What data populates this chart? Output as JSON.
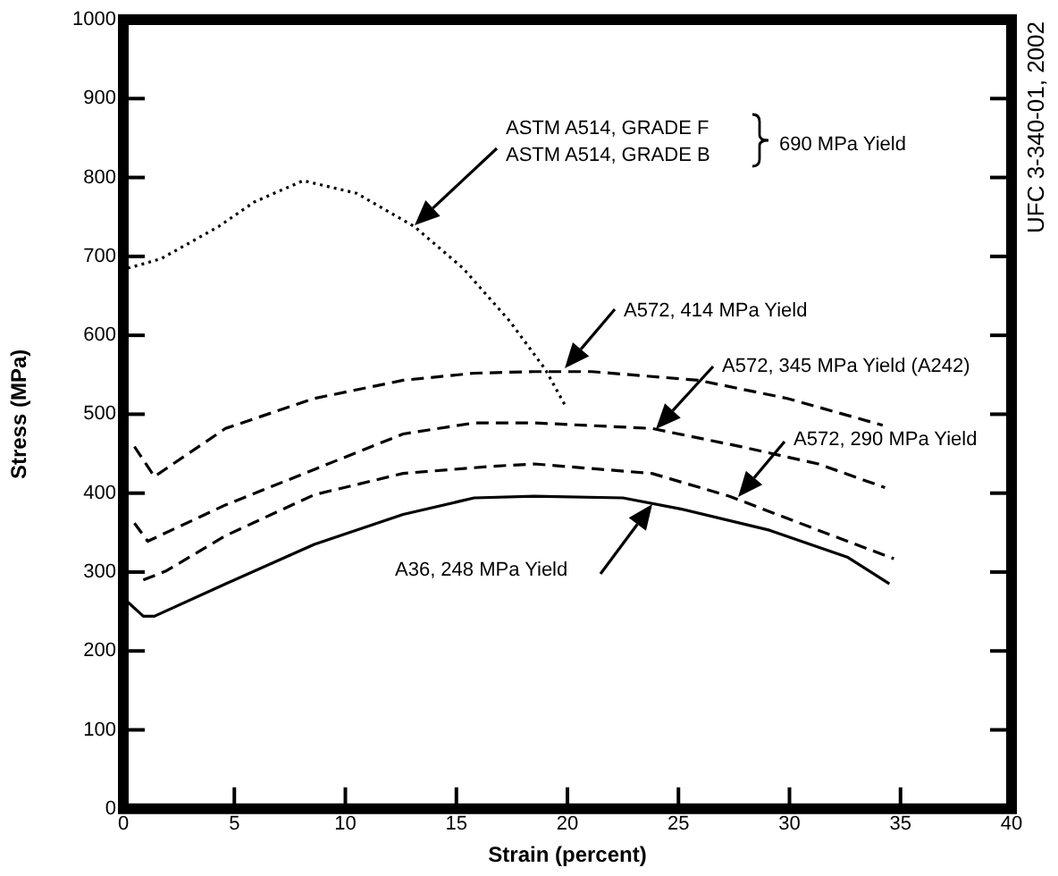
{
  "chart_data": {
    "type": "line",
    "xlabel": "Strain (percent)",
    "ylabel": "Stress (MPa)",
    "xlim": [
      0,
      40
    ],
    "xticks": [
      0,
      5,
      10,
      15,
      20,
      25,
      30,
      35,
      40
    ],
    "ylim": [
      0,
      1000
    ],
    "yticks": [
      0,
      100,
      200,
      300,
      400,
      500,
      600,
      700,
      800,
      900,
      1000
    ],
    "grid": false,
    "legend": false,
    "marker": "none",
    "series": [
      {
        "color": "#000000",
        "line_style": "dotted",
        "x": [
          0.2,
          1.7,
          4.3,
          5.9,
          8.1,
          10.5,
          13.1,
          15.3,
          17.4,
          19.0,
          19.9
        ],
        "values": [
          685,
          697,
          738,
          769,
          796,
          780,
          738,
          685,
          618,
          557,
          511
        ]
      },
      {
        "color": "#000000",
        "line_style": "dashed",
        "x": [
          0.5,
          1.4,
          4.6,
          8.6,
          12.6,
          15.8,
          18.5,
          21.1,
          25.9,
          29.9,
          34.2
        ],
        "values": [
          459,
          421,
          482,
          520,
          543,
          552,
          554,
          554,
          543,
          520,
          486
        ]
      },
      {
        "color": "#000000",
        "line_style": "dashed",
        "x": [
          0.5,
          1.1,
          4.6,
          8.6,
          12.6,
          15.8,
          18.5,
          23.8,
          27.8,
          31.3,
          34.3
        ],
        "values": [
          362,
          339,
          385,
          430,
          475,
          489,
          489,
          482,
          459,
          437,
          407
        ]
      },
      {
        "color": "#000000",
        "line_style": "dashed",
        "x": [
          0.9,
          1.9,
          4.6,
          8.6,
          12.6,
          16.6,
          18.5,
          23.8,
          27.3,
          31.3,
          34.7
        ],
        "values": [
          290,
          301,
          346,
          398,
          425,
          434,
          437,
          425,
          396,
          353,
          317
        ]
      },
      {
        "color": "#000000",
        "line_style": "solid",
        "x": [
          0.2,
          0.9,
          1.4,
          4.6,
          8.6,
          12.6,
          15.8,
          18.5,
          22.5,
          25.1,
          29.1,
          32.6,
          34.5
        ],
        "values": [
          262,
          244,
          244,
          285,
          335,
          373,
          394,
          396,
          394,
          380,
          353,
          319,
          285
        ]
      }
    ],
    "annotations": [
      "ASTM A514, GRADE F",
      "ASTM A514, GRADE B",
      "690 MPa Yield",
      "A572, 414 MPa Yield",
      "A572, 345 MPa Yield (A242)",
      "A572, 290 MPa Yield",
      "A36, 248 MPa Yield",
      "UFC 3-340-01, 2002"
    ]
  }
}
